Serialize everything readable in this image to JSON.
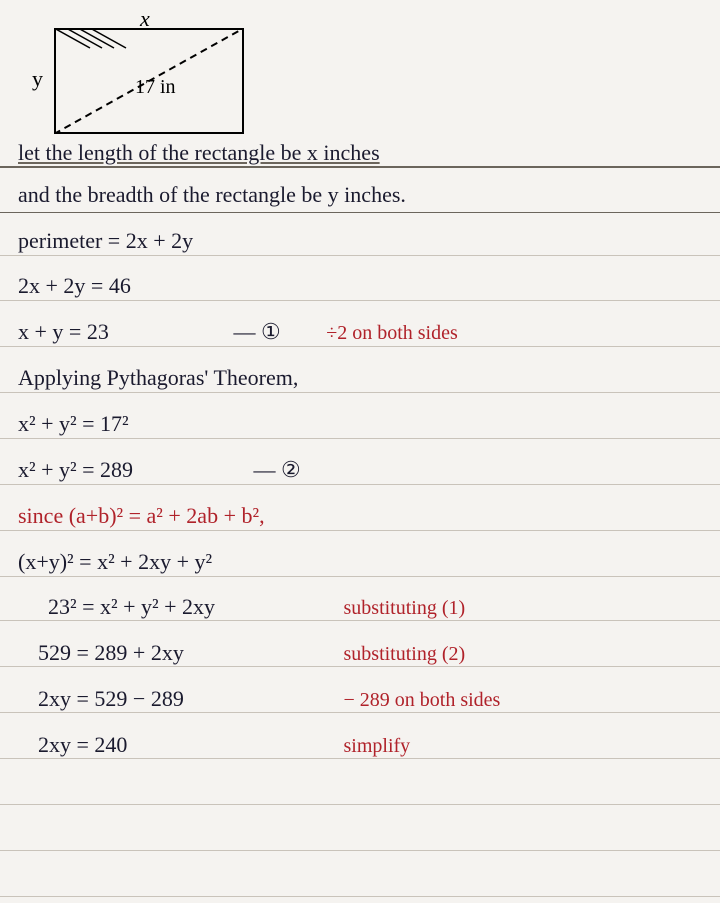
{
  "diagram": {
    "label_x": "x",
    "label_y": "y",
    "label_diag": "17 in"
  },
  "lines": {
    "l1": "let the length of the rectangle be x inches",
    "l2": "and the breadth of the rectangle be y inches.",
    "l3": "perimeter = 2x + 2y",
    "l4": "2x + 2y =  46",
    "l5a": "x + y  =  23",
    "l5b": "— ①",
    "l5c": "÷2 on both sides",
    "l6": "Applying Pythagoras' Theorem,",
    "l7": "x² + y²  =  17²",
    "l8a": "x² + y²  =  289",
    "l8b": "— ②",
    "l9": "since (a+b)² = a² + 2ab + b²,",
    "l10": "(x+y)²  =  x² + 2xy + y²",
    "l11a": "23²  =  x² + y² + 2xy",
    "l11b": "substituting (1)",
    "l12a": "529  =  289 + 2xy",
    "l12b": "substituting (2)",
    "l13a": "2xy  =  529 − 289",
    "l13b": "− 289 on both sides",
    "l14a": "2xy  =  240",
    "l14b": "simplify"
  },
  "rule_positions": [
    166,
    212,
    255,
    300,
    346,
    392,
    438,
    484,
    530,
    576,
    620,
    666,
    712,
    758,
    804,
    850,
    896
  ],
  "colors": {
    "rule_light": "#c9c3ba",
    "rule_dark": "#6b655c",
    "red": "#b0222a",
    "black": "#1a1a2e",
    "paper": "#f5f3f0"
  }
}
